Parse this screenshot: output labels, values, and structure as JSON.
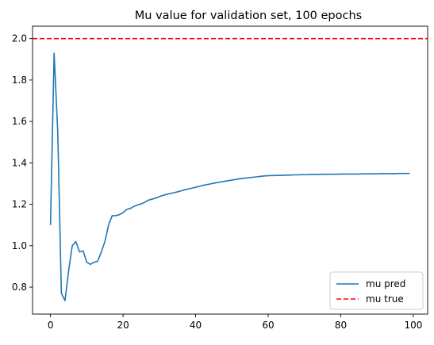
{
  "chart_data": {
    "type": "line",
    "title": "Mu value for validation set, 100 epochs",
    "xlabel": "",
    "ylabel": "",
    "xlim": [
      -4.95,
      103.95
    ],
    "ylim": [
      0.67,
      2.06
    ],
    "xticks": [
      0,
      20,
      40,
      60,
      80,
      100
    ],
    "yticks": [
      0.8,
      1.0,
      1.2,
      1.4,
      1.6,
      1.8,
      2.0
    ],
    "xtick_labels": [
      "0",
      "20",
      "40",
      "60",
      "80",
      "100"
    ],
    "ytick_labels": [
      "0.8",
      "1.0",
      "1.2",
      "1.4",
      "1.6",
      "1.8",
      "2.0"
    ],
    "grid": false,
    "legend": "lower-right",
    "series": [
      {
        "name": "mu pred",
        "color": "#1f77b4",
        "style": "solid",
        "x": [
          0,
          1,
          2,
          3,
          4,
          5,
          6,
          7,
          8,
          9,
          10,
          11,
          12,
          13,
          14,
          15,
          16,
          17,
          18,
          19,
          20,
          21,
          22,
          23,
          24,
          25,
          26,
          27,
          28,
          29,
          30,
          31,
          32,
          33,
          34,
          35,
          36,
          37,
          38,
          39,
          40,
          41,
          42,
          43,
          44,
          45,
          46,
          47,
          48,
          49,
          50,
          51,
          52,
          53,
          54,
          55,
          56,
          57,
          58,
          59,
          60,
          61,
          62,
          63,
          64,
          65,
          66,
          67,
          68,
          69,
          70,
          71,
          72,
          73,
          74,
          75,
          76,
          77,
          78,
          79,
          80,
          81,
          82,
          83,
          84,
          85,
          86,
          87,
          88,
          89,
          90,
          91,
          92,
          93,
          94,
          95,
          96,
          97,
          98,
          99
        ],
        "y": [
          1.1,
          1.93,
          1.55,
          0.77,
          0.735,
          0.88,
          1.0,
          1.02,
          0.97,
          0.975,
          0.92,
          0.91,
          0.92,
          0.925,
          0.97,
          1.02,
          1.1,
          1.145,
          1.145,
          1.15,
          1.16,
          1.175,
          1.18,
          1.19,
          1.197,
          1.202,
          1.21,
          1.22,
          1.225,
          1.23,
          1.237,
          1.243,
          1.248,
          1.252,
          1.256,
          1.26,
          1.265,
          1.27,
          1.274,
          1.278,
          1.282,
          1.287,
          1.291,
          1.295,
          1.298,
          1.302,
          1.305,
          1.308,
          1.311,
          1.314,
          1.317,
          1.32,
          1.323,
          1.325,
          1.327,
          1.329,
          1.331,
          1.333,
          1.335,
          1.337,
          1.338,
          1.339,
          1.339,
          1.34,
          1.34,
          1.341,
          1.341,
          1.342,
          1.342,
          1.343,
          1.343,
          1.343,
          1.344,
          1.344,
          1.344,
          1.345,
          1.345,
          1.345,
          1.345,
          1.345,
          1.346,
          1.346,
          1.346,
          1.346,
          1.346,
          1.346,
          1.347,
          1.347,
          1.347,
          1.347,
          1.347,
          1.348,
          1.348,
          1.348,
          1.348,
          1.348,
          1.349,
          1.349,
          1.349,
          1.349
        ]
      },
      {
        "name": "mu true",
        "color": "#ff0000",
        "style": "dashed",
        "y_constant": 2.0
      }
    ]
  }
}
